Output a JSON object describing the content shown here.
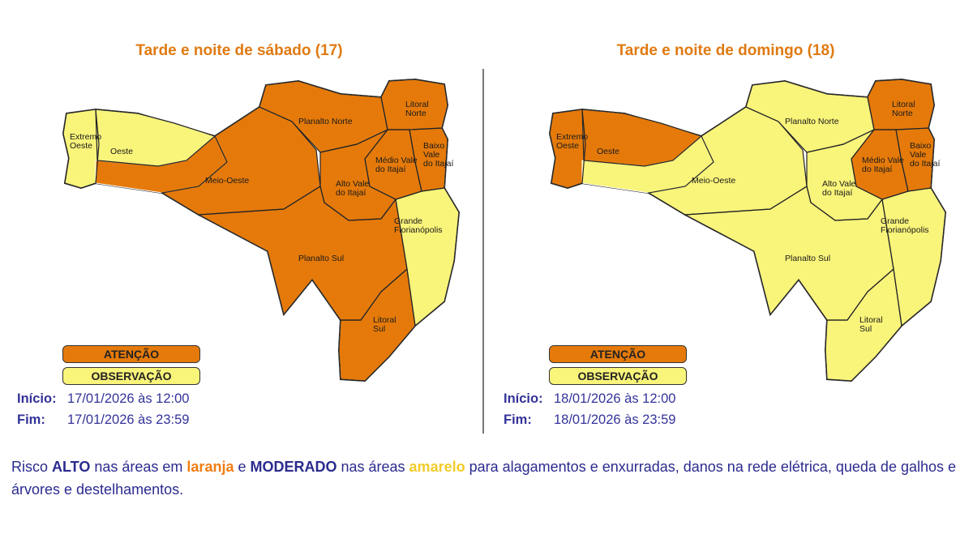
{
  "colors": {
    "attention": "#e57a0a",
    "observation": "#f9f47a",
    "title": "#e07a12",
    "text": "#333399"
  },
  "panels": [
    {
      "title": "Tarde e noite de sábado (17)",
      "regions": {
        "extremo_oeste": {
          "label": [
            "Extremo",
            "Oeste"
          ],
          "level": "observation"
        },
        "oeste": {
          "label": [
            "Oeste"
          ],
          "level": "observation"
        },
        "meio_oeste": {
          "label": [
            "Meio-Oeste"
          ],
          "level": "attention"
        },
        "planalto_norte": {
          "label": [
            "Planalto Norte"
          ],
          "level": "attention"
        },
        "litoral_norte": {
          "label": [
            "Litoral",
            "Norte"
          ],
          "level": "attention"
        },
        "baixo_vale": {
          "label": [
            "Baixo",
            "Vale",
            "do Itajaí"
          ],
          "level": "attention"
        },
        "medio_vale": {
          "label": [
            "Médio Vale",
            "do Itajaí"
          ],
          "level": "attention"
        },
        "alto_vale": {
          "label": [
            "Alto Vale",
            "do Itajaí"
          ],
          "level": "attention"
        },
        "grande_florianopolis": {
          "label": [
            "Grande",
            "Florianópolis"
          ],
          "level": "observation"
        },
        "planalto_sul": {
          "label": [
            "Planalto Sul"
          ],
          "level": "attention"
        },
        "litoral_sul": {
          "label": [
            "Litoral",
            "Sul"
          ],
          "level": "attention"
        }
      },
      "legend": {
        "attention": "ATENÇÃO",
        "observation": "OBSERVAÇÃO"
      },
      "start_label": "Início:",
      "start_value": "17/01/2026 às 12:00",
      "end_label": "Fim:",
      "end_value": "17/01/2026 às 23:59"
    },
    {
      "title": "Tarde e noite de domingo (18)",
      "regions": {
        "extremo_oeste": {
          "label": [
            "Extremo",
            "Oeste"
          ],
          "level": "attention"
        },
        "oeste": {
          "label": [
            "Oeste"
          ],
          "level": "attention"
        },
        "meio_oeste": {
          "label": [
            "Meio-Oeste"
          ],
          "level": "observation"
        },
        "planalto_norte": {
          "label": [
            "Planalto Norte"
          ],
          "level": "observation"
        },
        "litoral_norte": {
          "label": [
            "Litoral",
            "Norte"
          ],
          "level": "attention"
        },
        "baixo_vale": {
          "label": [
            "Baixo",
            "Vale",
            "do Itajaí"
          ],
          "level": "attention"
        },
        "medio_vale": {
          "label": [
            "Médio Vale",
            "do Itajaí"
          ],
          "level": "attention"
        },
        "alto_vale": {
          "label": [
            "Alto Vale",
            "do Itajaí"
          ],
          "level": "observation"
        },
        "grande_florianopolis": {
          "label": [
            "Grande",
            "Florianópolis"
          ],
          "level": "observation"
        },
        "planalto_sul": {
          "label": [
            "Planalto Sul"
          ],
          "level": "observation"
        },
        "litoral_sul": {
          "label": [
            "Litoral",
            "Sul"
          ],
          "level": "observation"
        }
      },
      "legend": {
        "attention": "ATENÇÃO",
        "observation": "OBSERVAÇÃO"
      },
      "start_label": "Início:",
      "start_value": "18/01/2026 às 12:00",
      "end_label": "Fim:",
      "end_value": "18/01/2026 às 23:59"
    }
  ],
  "footer": {
    "p1": "Risco ",
    "alto": "ALTO",
    "p2": " nas áreas em ",
    "laranja": "laranja",
    "p3": " e ",
    "moderado": "MODERADO",
    "p4": " nas áreas ",
    "amarelo": "amarelo",
    "p5": " para alagamentos e enxurradas, danos na rede elétrica, queda de galhos e árvores e destelhamentos."
  }
}
